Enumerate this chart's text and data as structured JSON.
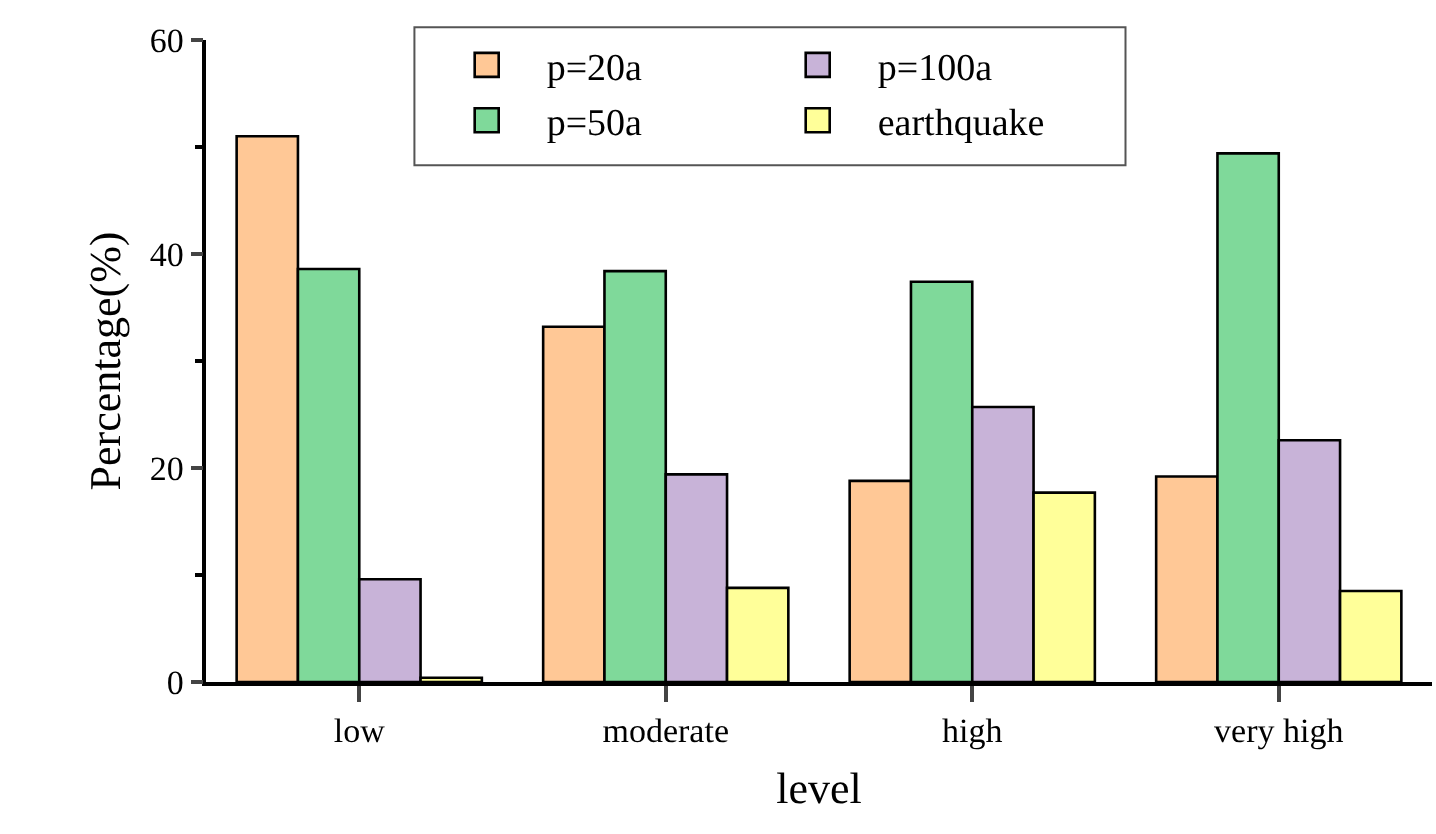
{
  "chart_data": {
    "type": "bar",
    "xlabel": "level",
    "ylabel": "Percentage(%)",
    "categories": [
      "low",
      "moderate",
      "high",
      "very high"
    ],
    "series": [
      {
        "name": "p=20a",
        "color": "#ffc896",
        "values": [
          51.0,
          33.2,
          18.8,
          19.2
        ]
      },
      {
        "name": "p=50a",
        "color": "#7fd99a",
        "values": [
          38.6,
          38.4,
          37.4,
          49.4
        ]
      },
      {
        "name": "p=100a",
        "color": "#c8b3d8",
        "values": [
          9.6,
          19.4,
          25.7,
          22.6
        ]
      },
      {
        "name": "earthquake",
        "color": "#ffff99",
        "values": [
          0.4,
          8.8,
          17.7,
          8.5
        ]
      }
    ],
    "ylim": [
      0,
      60
    ],
    "yticks": [
      0,
      {
        "value": 10,
        "label": null
      },
      20,
      {
        "value": 30,
        "label": null
      },
      40,
      {
        "value": 50,
        "label": null
      },
      60
    ],
    "grid": false,
    "legend": "top"
  }
}
